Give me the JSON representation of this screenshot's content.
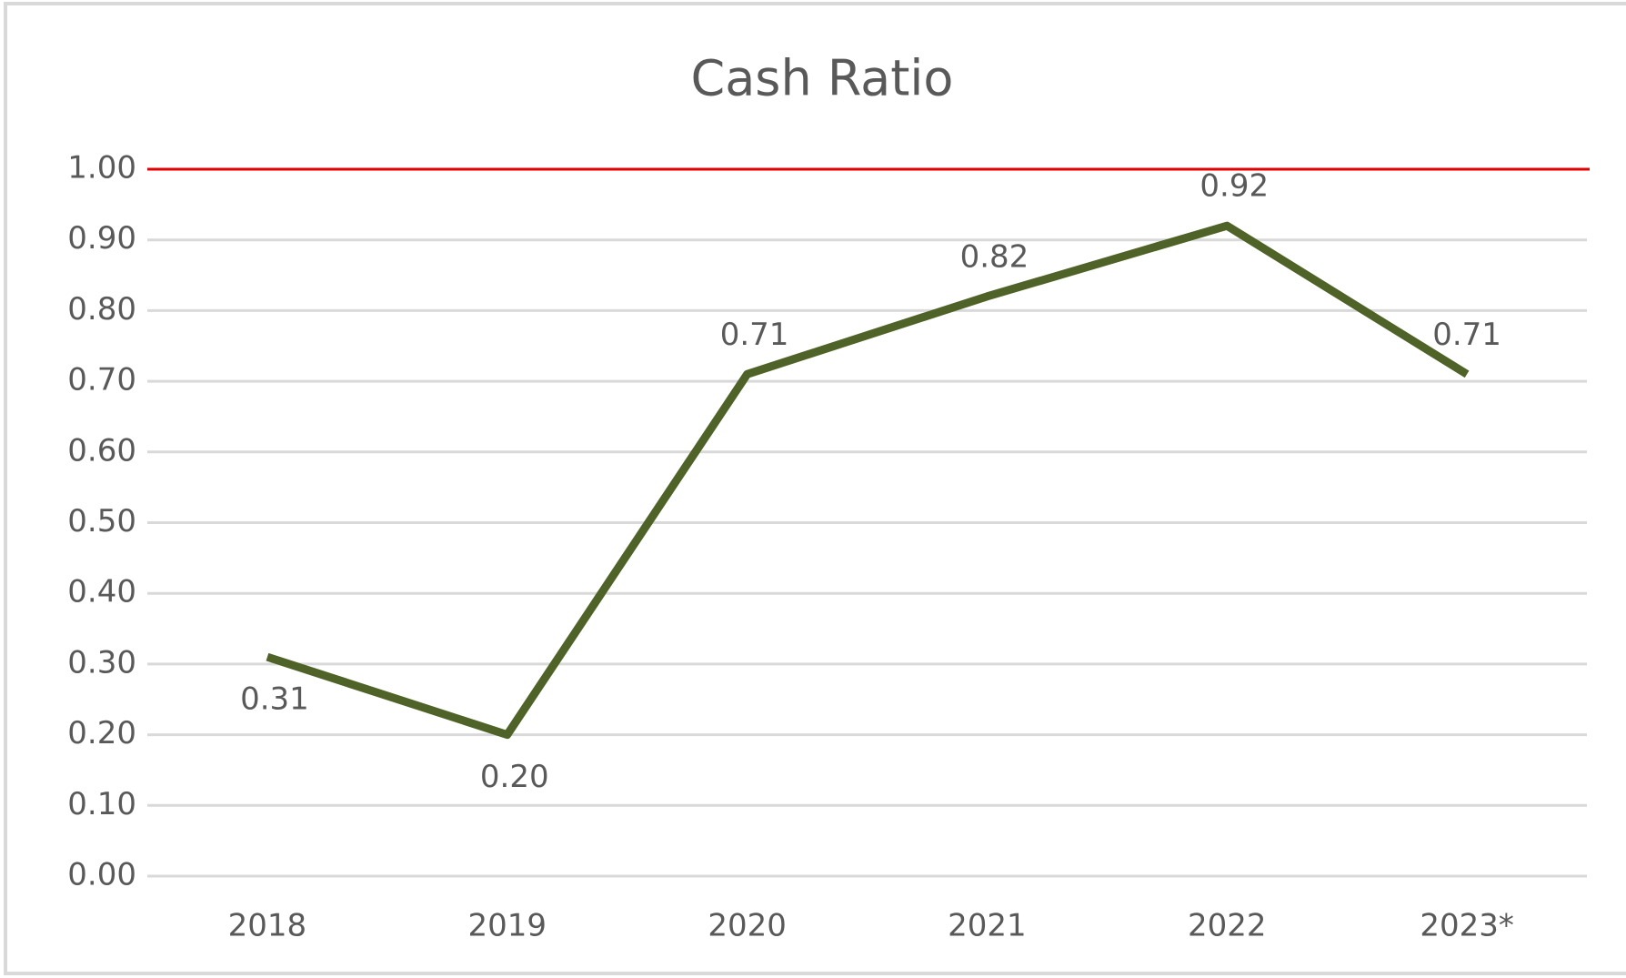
{
  "chart_data": {
    "type": "line",
    "title": "Cash Ratio",
    "categories": [
      "2018",
      "2019",
      "2020",
      "2021",
      "2022",
      "2023*"
    ],
    "series": [
      {
        "name": "Cash Ratio",
        "color": "#4f6228",
        "values": [
          0.31,
          0.2,
          0.71,
          0.82,
          0.92,
          0.71
        ],
        "value_labels": [
          "0.31",
          "0.20",
          "0.71",
          "0.82",
          "0.92",
          "0.71"
        ]
      }
    ],
    "ylim": [
      0,
      1
    ],
    "yticks": [
      {
        "value": 0,
        "label": "0.00"
      },
      {
        "value": 0.1,
        "label": "0.10"
      },
      {
        "value": 0.2,
        "label": "0.20"
      },
      {
        "value": 0.3,
        "label": "0.30"
      },
      {
        "value": 0.4,
        "label": "0.40"
      },
      {
        "value": 0.5,
        "label": "0.50"
      },
      {
        "value": 0.6,
        "label": "0.60"
      },
      {
        "value": 0.7,
        "label": "0.70"
      },
      {
        "value": 0.8,
        "label": "0.80"
      },
      {
        "value": 0.9,
        "label": "0.90"
      },
      {
        "value": 1,
        "label": "1.00"
      }
    ],
    "grid": true,
    "reference_line": {
      "value": 1,
      "color": "#e00000"
    }
  }
}
